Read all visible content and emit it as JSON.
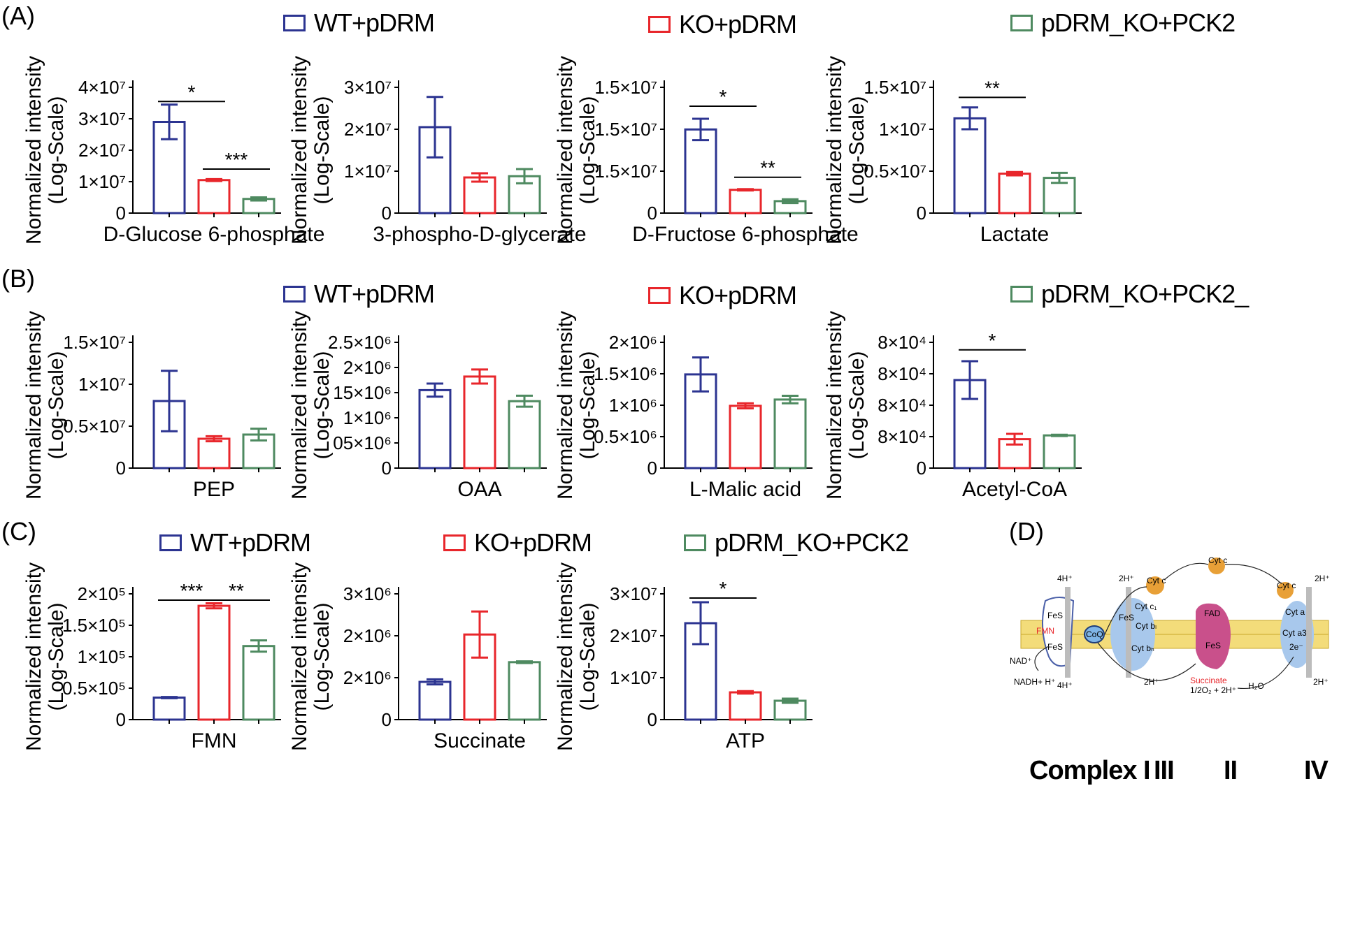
{
  "panels": {
    "A": {
      "label": "(A)",
      "legend": [
        "WT+pDRM",
        "KO+pDRM",
        "pDRM_KO+PCK2"
      ]
    },
    "B": {
      "label": "(B)",
      "legend": [
        "WT+pDRM",
        "KO+pDRM",
        "pDRM_KO+PCK2_"
      ]
    },
    "C": {
      "label": "(C)",
      "legend": [
        "WT+pDRM",
        "KO+pDRM",
        "pDRM_KO+PCK2"
      ]
    },
    "D": {
      "label": "(D)",
      "complex_labels": [
        "Complex I",
        "III",
        "II",
        "IV"
      ],
      "diagram_labels": {
        "nad": "NAD⁺",
        "nadh": "NADH+ H⁺",
        "fes1": "FeS",
        "fmn": "FMN",
        "fes2": "FeS",
        "coq": "CoQ",
        "h4_top": "4H⁺",
        "h4_bottom": "4H⁺",
        "h2_iii_top": "2H⁺",
        "h2_iii_bottom": "2H⁺",
        "cytc1_label": "Cyt c",
        "cytc_top": "Cyt c",
        "cytc1": "Cyt c₁",
        "fes3": "FeS",
        "cytbl": "Cyt bₗ",
        "cytbh": "Cyt bₕ",
        "fad": "FAD",
        "fes4": "FeS",
        "succinate": "Succinate",
        "o2": "1/2O₂ + 2H⁺",
        "h2o": "H₂O",
        "cytc_iv": "Cyt c",
        "cyta": "Cyt a",
        "cyta3": "Cyt a3",
        "e2": "2e⁻",
        "h2_iv_top": "2H⁺",
        "h2_iv_bottom": "2H⁺"
      }
    }
  },
  "colors": {
    "WT": "#2c3491",
    "KO": "#e8262b",
    "PCK2": "#4e8a60"
  },
  "axis_title": [
    "Normalized intensity",
    "(Log-Scale)"
  ],
  "chart_data": [
    {
      "id": "A1",
      "type": "bar",
      "title": "",
      "xlabel": "D-Glucose 6-phosphate",
      "categories": [
        "WT+pDRM",
        "KO+pDRM",
        "pDRM_KO+PCK2"
      ],
      "values": [
        2.9,
        1.05,
        0.45
      ],
      "errors": [
        0.55,
        0.03,
        0.05
      ],
      "ylim": [
        0,
        4
      ],
      "ticks": [
        "0",
        "1×10⁷",
        "2×10⁷",
        "3×10⁷",
        "4×10⁷"
      ],
      "significance": [
        {
          "from": 0,
          "to": 1,
          "label": "*",
          "level": 3.55
        },
        {
          "from": 1,
          "to": 2,
          "label": "***",
          "level": 1.4
        }
      ]
    },
    {
      "id": "A2",
      "type": "bar",
      "title": "",
      "xlabel": "3-phospho-D-glycerate",
      "categories": [
        "WT+pDRM",
        "KO+pDRM",
        "pDRM_KO+PCK2"
      ],
      "values": [
        2.05,
        0.85,
        0.88
      ],
      "errors": [
        0.72,
        0.1,
        0.17
      ],
      "ylim": [
        0,
        3
      ],
      "ticks": [
        "0",
        "1×10⁷",
        "2×10⁷",
        "3×10⁷"
      ],
      "significance": []
    },
    {
      "id": "A3",
      "type": "bar",
      "title": "",
      "xlabel": "D-Fructose 6-phosphate",
      "categories": [
        "WT+pDRM",
        "KO+pDRM",
        "pDRM_KO+PCK2"
      ],
      "values": [
        1.33,
        0.37,
        0.19
      ],
      "errors": [
        0.17,
        0.01,
        0.03
      ],
      "ylim": [
        0,
        2
      ],
      "ticks": [
        "0",
        "1.5×10⁷",
        "1.5×10⁷",
        "1.5×10⁷"
      ],
      "significance": [
        {
          "from": 0,
          "to": 1,
          "label": "*",
          "level": 1.7
        },
        {
          "from": 1,
          "to": 2,
          "label": "**",
          "level": 0.57
        }
      ]
    },
    {
      "id": "A4",
      "type": "bar",
      "title": "",
      "xlabel": "Lactate",
      "categories": [
        "WT+pDRM",
        "KO+pDRM",
        "pDRM_KO+PCK2"
      ],
      "values": [
        1.13,
        0.47,
        0.42
      ],
      "errors": [
        0.13,
        0.02,
        0.06
      ],
      "ylim": [
        0,
        1.5
      ],
      "ticks": [
        "0",
        "0.5×10⁷",
        "1×10⁷",
        "1.5×10⁷"
      ],
      "significance": [
        {
          "from": 0,
          "to": 1,
          "label": "**",
          "level": 1.38
        }
      ]
    },
    {
      "id": "B1",
      "type": "bar",
      "title": "",
      "xlabel": "PEP",
      "categories": [
        "WT+pDRM",
        "KO+pDRM",
        "pDRM_KO+PCK2_"
      ],
      "values": [
        0.8,
        0.35,
        0.4
      ],
      "errors": [
        0.36,
        0.03,
        0.07
      ],
      "ylim": [
        0,
        1.5
      ],
      "ticks": [
        "0",
        "0.5×10⁷",
        "1×10⁷",
        "1.5×10⁷"
      ],
      "significance": []
    },
    {
      "id": "B2",
      "type": "bar",
      "title": "",
      "xlabel": "OAA",
      "categories": [
        "WT+pDRM",
        "KO+pDRM",
        "pDRM_KO+PCK2_"
      ],
      "values": [
        1.55,
        1.82,
        1.33
      ],
      "errors": [
        0.13,
        0.14,
        0.11
      ],
      "ylim": [
        0,
        2.5
      ],
      "ticks": [
        "0",
        "05×10⁶",
        "1×10⁶",
        "15×10⁶",
        "2×10⁶",
        "2.5×10⁶"
      ],
      "significance": []
    },
    {
      "id": "B3",
      "type": "bar",
      "title": "",
      "xlabel": "L-Malic acid",
      "categories": [
        "WT+pDRM",
        "KO+pDRM",
        "pDRM_KO+PCK2_"
      ],
      "values": [
        1.49,
        0.99,
        1.09
      ],
      "errors": [
        0.27,
        0.04,
        0.06
      ],
      "ylim": [
        0,
        2
      ],
      "ticks": [
        "0",
        "0.5×10⁶",
        "1×10⁶",
        "1.5×10⁶",
        "2×10⁶"
      ],
      "significance": []
    },
    {
      "id": "B4",
      "type": "bar",
      "title": "",
      "xlabel": "Acetyl-CoA",
      "categories": [
        "WT+pDRM",
        "KO+pDRM",
        "pDRM_KO+PCK2_"
      ],
      "values": [
        2.8,
        0.92,
        1.04
      ],
      "errors": [
        0.6,
        0.17,
        0.02
      ],
      "ylim": [
        0,
        4
      ],
      "ticks": [
        "0",
        "8×10⁴",
        "8×10⁴",
        "8×10⁴",
        "8×10⁴"
      ],
      "significance": [
        {
          "from": 0,
          "to": 1,
          "label": "*",
          "level": 3.76
        }
      ]
    },
    {
      "id": "C1",
      "type": "bar",
      "title": "",
      "xlabel": "FMN",
      "categories": [
        "WT+pDRM",
        "KO+pDRM",
        "pDRM_KO+PCK2"
      ],
      "values": [
        0.35,
        1.81,
        1.17
      ],
      "errors": [
        0.01,
        0.04,
        0.09
      ],
      "ylim": [
        0,
        2
      ],
      "ticks": [
        "0",
        "0.5×10⁵",
        "1×10⁵",
        "1.5×10⁵",
        "2×10⁵"
      ],
      "significance": [
        {
          "from": 0,
          "to": 1,
          "label": "***",
          "level": 1.9
        },
        {
          "from": 1,
          "to": 2,
          "label": "**",
          "level": 1.9
        }
      ]
    },
    {
      "id": "C2",
      "type": "bar",
      "title": "",
      "xlabel": "Succinate",
      "categories": [
        "WT+pDRM",
        "KO+pDRM",
        "pDRM_KO+PCK2"
      ],
      "values": [
        0.9,
        2.03,
        1.37
      ],
      "errors": [
        0.06,
        0.55,
        0.02
      ],
      "ylim": [
        0,
        3
      ],
      "ticks": [
        "0",
        "2×10⁶",
        "2×10⁶",
        "3×10⁶"
      ],
      "significance": []
    },
    {
      "id": "C3",
      "type": "bar",
      "title": "",
      "xlabel": "ATP",
      "categories": [
        "WT+pDRM",
        "KO+pDRM",
        "pDRM_KO+PCK2"
      ],
      "values": [
        2.3,
        0.65,
        0.45
      ],
      "errors": [
        0.5,
        0.03,
        0.05
      ],
      "ylim": [
        0,
        3
      ],
      "ticks": [
        "0",
        "1×10⁷",
        "2×10⁷",
        "3×10⁷"
      ],
      "significance": [
        {
          "from": 0,
          "to": 1,
          "label": "*",
          "level": 2.9
        }
      ]
    }
  ]
}
